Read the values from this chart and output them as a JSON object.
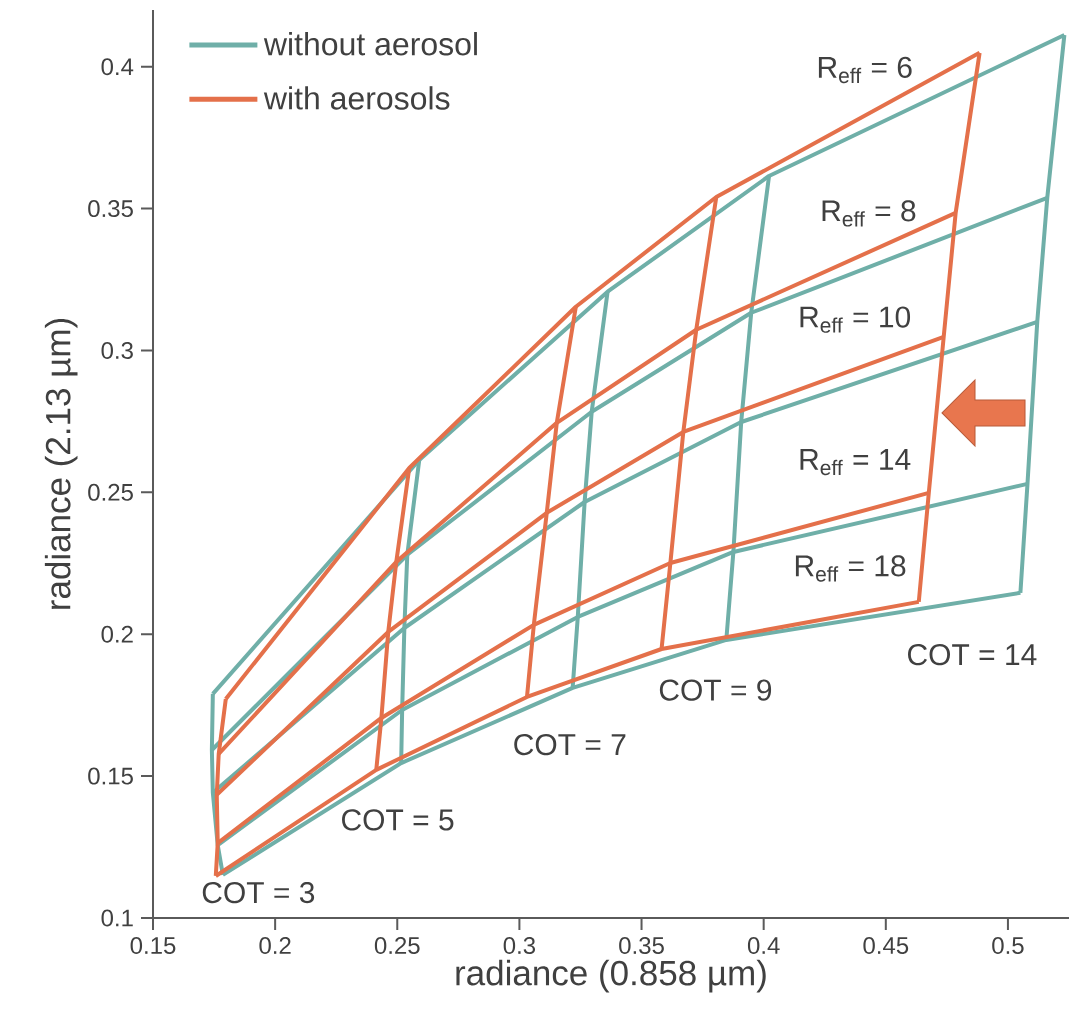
{
  "chart_data": {
    "type": "line",
    "xlabel": "radiance (0.858 µm)",
    "ylabel": "radiance (2.13 µm)",
    "xlim": [
      0.15,
      0.525
    ],
    "ylim": [
      0.1,
      0.42
    ],
    "xticks": [
      0.15,
      0.2,
      0.25,
      0.3,
      0.35,
      0.4,
      0.45,
      0.5
    ],
    "yticks": [
      0.1,
      0.15,
      0.2,
      0.25,
      0.3,
      0.35,
      0.4
    ],
    "legend": "top left",
    "series": [
      {
        "name": "without aerosol",
        "color": "#6fafa8",
        "x": [
          0.1745,
          0.259,
          0.3361,
          0.4022,
          0.5231
        ],
        "values": [
          0.179,
          0.2614,
          0.3207,
          0.3615,
          0.4112
        ]
      },
      {
        "color": "#6fafa8",
        "x": [
          0.1741,
          0.2541,
          0.3296,
          0.3949,
          0.5161
        ],
        "values": [
          0.1592,
          0.228,
          0.2784,
          0.3133,
          0.3538
        ]
      },
      {
        "color": "#6fafa8",
        "x": [
          0.1745,
          0.2529,
          0.3267,
          0.3908,
          0.512
        ],
        "values": [
          0.1441,
          0.2022,
          0.2466,
          0.2748,
          0.3101
        ]
      },
      {
        "color": "#6fafa8",
        "x": [
          0.1765,
          0.252,
          0.3239,
          0.3876,
          0.508
        ],
        "values": [
          0.1257,
          0.1733,
          0.2061,
          0.229,
          0.253
        ]
      },
      {
        "color": "#6fafa8",
        "x": [
          0.1786,
          0.2516,
          0.3218,
          0.3847,
          0.5051
        ],
        "values": [
          0.1152,
          0.1546,
          0.1811,
          0.198,
          0.2146
        ]
      },
      {
        "color": "#6fafa8",
        "x": [
          0.1745,
          0.1741,
          0.1745,
          0.1765,
          0.1786
        ],
        "values": [
          0.179,
          0.1592,
          0.1441,
          0.1257,
          0.1152
        ]
      },
      {
        "color": "#6fafa8",
        "x": [
          0.259,
          0.2541,
          0.2529,
          0.252,
          0.2516
        ],
        "values": [
          0.2614,
          0.228,
          0.2022,
          0.1733,
          0.1546
        ]
      },
      {
        "color": "#6fafa8",
        "x": [
          0.3361,
          0.3296,
          0.3267,
          0.3239,
          0.3218
        ],
        "values": [
          0.3207,
          0.2784,
          0.2466,
          0.2061,
          0.1811
        ]
      },
      {
        "color": "#6fafa8",
        "x": [
          0.4022,
          0.3949,
          0.3908,
          0.3876,
          0.3847
        ],
        "values": [
          0.3615,
          0.3133,
          0.2748,
          0.229,
          0.198
        ]
      },
      {
        "color": "#6fafa8",
        "x": [
          0.5231,
          0.5161,
          0.512,
          0.508,
          0.5051
        ],
        "values": [
          0.4112,
          0.3538,
          0.3101,
          0.253,
          0.2146
        ]
      },
      {
        "name": "with aerosols",
        "color": "#e4704a",
        "x": [
          0.1798,
          0.2549,
          0.3231,
          0.3806,
          0.4884
        ],
        "values": [
          0.1772,
          0.2586,
          0.3154,
          0.3541,
          0.4049
        ]
      },
      {
        "color": "#e4704a",
        "x": [
          0.1769,
          0.2496,
          0.3153,
          0.3724,
          0.4786
        ],
        "values": [
          0.1578,
          0.2255,
          0.2745,
          0.3073,
          0.3485
        ]
      },
      {
        "color": "#e4704a",
        "x": [
          0.1761,
          0.2463,
          0.3112,
          0.3671,
          0.4737
        ],
        "values": [
          0.1434,
          0.2008,
          0.2428,
          0.2713,
          0.3048
        ]
      },
      {
        "color": "#e4704a",
        "x": [
          0.1765,
          0.2435,
          0.3059,
          0.3618,
          0.4676
        ],
        "values": [
          0.1264,
          0.1705,
          0.2033,
          0.2251,
          0.2498
        ]
      },
      {
        "color": "#e4704a",
        "x": [
          0.1757,
          0.2414,
          0.3031,
          0.3582,
          0.4635
        ],
        "values": [
          0.1148,
          0.1522,
          0.1779,
          0.1948,
          0.2114
        ]
      },
      {
        "color": "#e4704a",
        "x": [
          0.1798,
          0.1769,
          0.1761,
          0.1765,
          0.1757
        ],
        "values": [
          0.1772,
          0.1578,
          0.1434,
          0.1264,
          0.1148
        ]
      },
      {
        "color": "#e4704a",
        "x": [
          0.2549,
          0.2496,
          0.2463,
          0.2435,
          0.2414
        ],
        "values": [
          0.2586,
          0.2255,
          0.2008,
          0.1705,
          0.1522
        ]
      },
      {
        "color": "#e4704a",
        "x": [
          0.3231,
          0.3153,
          0.3112,
          0.3059,
          0.3031
        ],
        "values": [
          0.3154,
          0.2745,
          0.2428,
          0.2033,
          0.1779
        ]
      },
      {
        "color": "#e4704a",
        "x": [
          0.3806,
          0.3724,
          0.3671,
          0.3618,
          0.3582
        ],
        "values": [
          0.3541,
          0.3073,
          0.2713,
          0.2251,
          0.1948
        ]
      },
      {
        "color": "#e4704a",
        "x": [
          0.4884,
          0.4786,
          0.4737,
          0.4676,
          0.4635
        ],
        "values": [
          0.4049,
          0.3485,
          0.3048,
          0.2498,
          0.2114
        ]
      }
    ],
    "annotations": [
      "R$_{eff}$ = 6",
      "R$_{eff}$ = 8",
      "R$_{eff}$ = 10",
      "R$_{eff}$ = 14",
      "R$_{eff}$ = 18",
      "COT = 3",
      "COT = 5",
      "COT = 7",
      "COT = 9",
      "COT = 14"
    ]
  }
}
